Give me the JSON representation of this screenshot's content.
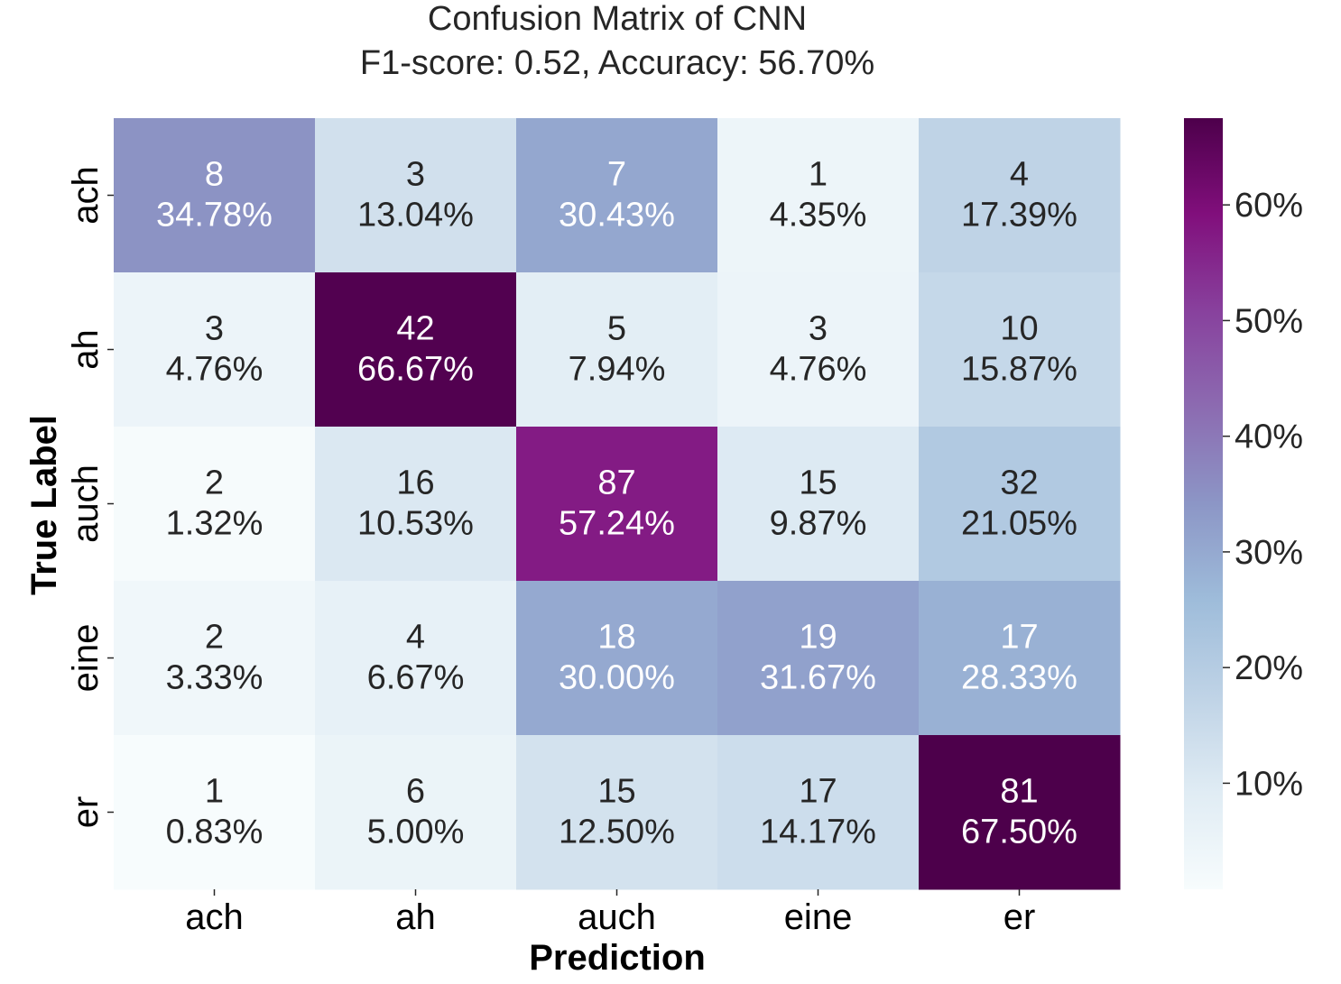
{
  "chart_data": {
    "type": "heatmap",
    "title_line1": "Confusion Matrix of CNN",
    "title_line2": "F1-score: 0.52, Accuracy: 56.70%",
    "xlabel": "Prediction",
    "ylabel": "True Label",
    "x_categories": [
      "ach",
      "ah",
      "auch",
      "eine",
      "er"
    ],
    "y_categories": [
      "ach",
      "ah",
      "auch",
      "eine",
      "er"
    ],
    "counts": [
      [
        8,
        3,
        7,
        1,
        4
      ],
      [
        3,
        42,
        5,
        3,
        10
      ],
      [
        2,
        16,
        87,
        15,
        32
      ],
      [
        2,
        4,
        18,
        19,
        17
      ],
      [
        1,
        6,
        15,
        17,
        81
      ]
    ],
    "percents": [
      [
        "34.78%",
        "13.04%",
        "30.43%",
        "4.35%",
        "17.39%"
      ],
      [
        "4.76%",
        "66.67%",
        "7.94%",
        "4.76%",
        "15.87%"
      ],
      [
        "1.32%",
        "10.53%",
        "57.24%",
        "9.87%",
        "21.05%"
      ],
      [
        "3.33%",
        "6.67%",
        "30.00%",
        "31.67%",
        "28.33%"
      ],
      [
        "0.83%",
        "5.00%",
        "12.50%",
        "14.17%",
        "67.50%"
      ]
    ],
    "values": [
      [
        34.78,
        13.04,
        30.43,
        4.35,
        17.39
      ],
      [
        4.76,
        66.67,
        7.94,
        4.76,
        15.87
      ],
      [
        1.32,
        10.53,
        57.24,
        9.87,
        21.05
      ],
      [
        3.33,
        6.67,
        30.0,
        31.67,
        28.33
      ],
      [
        0.83,
        5.0,
        12.5,
        14.17,
        67.5
      ]
    ],
    "colorscale": "BuPu",
    "color_range": [
      0.83,
      67.5
    ],
    "colorbar_ticks": [
      10,
      20,
      30,
      40,
      50,
      60
    ],
    "colorbar_tick_labels": [
      "10%",
      "20%",
      "30%",
      "40%",
      "50%",
      "60%"
    ]
  }
}
